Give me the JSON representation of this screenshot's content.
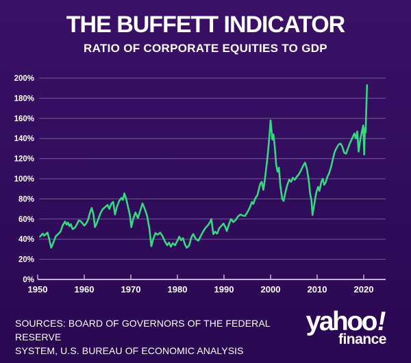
{
  "page": {
    "bg_top": "#3a1166",
    "bg_bottom": "#2a0751"
  },
  "header": {
    "title": "THE BUFFETT INDICATOR",
    "subtitle": "RATIO OF CORPORATE EQUITIES TO GDP"
  },
  "footer": {
    "lines": [
      "SOURCES: BOARD OF GOVERNORS OF THE FEDERAL RESERVE",
      "SYSTEM, U.S. BUREAU OF ECONOMIC ANALYSIS"
    ]
  },
  "brand": {
    "wordmark": "yahoo",
    "bang": "!",
    "sub": "finance"
  },
  "chart_data": {
    "type": "line",
    "title": "THE BUFFETT INDICATOR",
    "subtitle": "RATIO OF CORPORATE EQUITIES TO GDP",
    "xlabel": "",
    "ylabel": "",
    "xlim": [
      1948,
      2025
    ],
    "ylim": [
      0,
      200
    ],
    "y_tick_step": 20,
    "y_tick_labels": [
      "0%",
      "20%",
      "40%",
      "60%",
      "80%",
      "100%",
      "120%",
      "140%",
      "160%",
      "180%",
      "200%"
    ],
    "x_ticks": [
      1950,
      1960,
      1970,
      1980,
      1990,
      2000,
      2010,
      2020
    ],
    "grid": "horizontal",
    "legend": "none",
    "line_color": "#36d981",
    "axis_color": "#bdb6cd",
    "grid_color": "#8b81a8",
    "series": [
      {
        "name": "Ratio of corporate equities to GDP (%)",
        "points": [
          [
            1950.5,
            42.5
          ],
          [
            1950.8,
            44
          ],
          [
            1951.1,
            45.5
          ],
          [
            1951.4,
            43.5
          ],
          [
            1951.8,
            45
          ],
          [
            1952.1,
            46.5
          ],
          [
            1952.45,
            40.5
          ],
          [
            1952.9,
            31.5
          ],
          [
            1953.4,
            37
          ],
          [
            1953.9,
            43
          ],
          [
            1954.4,
            45
          ],
          [
            1954.9,
            47.5
          ],
          [
            1955.4,
            54
          ],
          [
            1955.9,
            57.5
          ],
          [
            1956.2,
            54.5
          ],
          [
            1956.5,
            56.5
          ],
          [
            1956.8,
            53
          ],
          [
            1957.1,
            55
          ],
          [
            1957.5,
            50
          ],
          [
            1958,
            51.5
          ],
          [
            1958.4,
            54.5
          ],
          [
            1958.8,
            58.5
          ],
          [
            1959.2,
            58
          ],
          [
            1959.6,
            56
          ],
          [
            1960,
            53.5
          ],
          [
            1960.4,
            55.5
          ],
          [
            1960.8,
            59
          ],
          [
            1961.2,
            66
          ],
          [
            1961.6,
            71
          ],
          [
            1962,
            64
          ],
          [
            1962.3,
            52
          ],
          [
            1962.7,
            56
          ],
          [
            1963.1,
            61
          ],
          [
            1963.5,
            66
          ],
          [
            1964,
            70
          ],
          [
            1964.5,
            72
          ],
          [
            1965,
            74
          ],
          [
            1965.4,
            70
          ],
          [
            1965.8,
            75
          ],
          [
            1966.2,
            77
          ],
          [
            1966.6,
            64.5
          ],
          [
            1967,
            72
          ],
          [
            1967.5,
            78
          ],
          [
            1968,
            81
          ],
          [
            1968.3,
            79
          ],
          [
            1968.6,
            85.5
          ],
          [
            1969,
            80
          ],
          [
            1969.4,
            72
          ],
          [
            1969.8,
            64
          ],
          [
            1970.1,
            52
          ],
          [
            1970.5,
            60
          ],
          [
            1971,
            66.5
          ],
          [
            1971.5,
            61
          ],
          [
            1972,
            68
          ],
          [
            1972.5,
            75.5
          ],
          [
            1973,
            70
          ],
          [
            1973.5,
            63
          ],
          [
            1974,
            50
          ],
          [
            1974.4,
            33
          ],
          [
            1974.8,
            40
          ],
          [
            1975.3,
            46
          ],
          [
            1975.8,
            44.5
          ],
          [
            1976.3,
            46.5
          ],
          [
            1976.8,
            43
          ],
          [
            1977.3,
            38
          ],
          [
            1977.8,
            34
          ],
          [
            1978.2,
            36.5
          ],
          [
            1978.6,
            32.5
          ],
          [
            1979,
            36
          ],
          [
            1979.5,
            34
          ],
          [
            1980,
            38.5
          ],
          [
            1980.4,
            42.5
          ],
          [
            1980.8,
            39
          ],
          [
            1981.2,
            41
          ],
          [
            1981.6,
            35
          ],
          [
            1982,
            31.5
          ],
          [
            1982.5,
            33.5
          ],
          [
            1983,
            42
          ],
          [
            1983.4,
            45
          ],
          [
            1984,
            40
          ],
          [
            1984.5,
            38.5
          ],
          [
            1985,
            43
          ],
          [
            1985.5,
            47.5
          ],
          [
            1986,
            51
          ],
          [
            1986.5,
            53.5
          ],
          [
            1987,
            57
          ],
          [
            1987.3,
            60
          ],
          [
            1987.7,
            45
          ],
          [
            1988.1,
            47.5
          ],
          [
            1988.5,
            45.5
          ],
          [
            1989,
            51
          ],
          [
            1989.5,
            53.5
          ],
          [
            1989.9,
            55.5
          ],
          [
            1990.3,
            52
          ],
          [
            1990.6,
            48
          ],
          [
            1991,
            54
          ],
          [
            1991.5,
            60
          ],
          [
            1992,
            57
          ],
          [
            1992.5,
            59
          ],
          [
            1993,
            62.5
          ],
          [
            1993.5,
            64.5
          ],
          [
            1994,
            63.5
          ],
          [
            1994.5,
            63
          ],
          [
            1995,
            66.5
          ],
          [
            1995.5,
            71
          ],
          [
            1996,
            77
          ],
          [
            1996.3,
            75
          ],
          [
            1996.7,
            80.5
          ],
          [
            1997.2,
            84
          ],
          [
            1997.5,
            90
          ],
          [
            1997.8,
            95
          ],
          [
            1998.1,
            97
          ],
          [
            1998.45,
            89
          ],
          [
            1998.8,
            100
          ],
          [
            1999.1,
            112
          ],
          [
            1999.4,
            124
          ],
          [
            1999.7,
            140
          ],
          [
            2000,
            158
          ],
          [
            2000.2,
            148
          ],
          [
            2000.4,
            139
          ],
          [
            2000.6,
            144
          ],
          [
            2000.9,
            132
          ],
          [
            2001.2,
            114
          ],
          [
            2001.5,
            107
          ],
          [
            2001.8,
            111
          ],
          [
            2002.1,
            93
          ],
          [
            2002.5,
            80
          ],
          [
            2002.8,
            78
          ],
          [
            2003.2,
            87
          ],
          [
            2003.6,
            94
          ],
          [
            2004,
            99
          ],
          [
            2004.4,
            97
          ],
          [
            2004.8,
            101
          ],
          [
            2005.2,
            99
          ],
          [
            2005.6,
            102
          ],
          [
            2006,
            104
          ],
          [
            2006.5,
            108
          ],
          [
            2007,
            113
          ],
          [
            2007.4,
            116
          ],
          [
            2007.8,
            110
          ],
          [
            2008.2,
            98
          ],
          [
            2008.5,
            85
          ],
          [
            2008.8,
            78
          ],
          [
            2009,
            64
          ],
          [
            2009.2,
            70
          ],
          [
            2009.4,
            75
          ],
          [
            2009.8,
            86
          ],
          [
            2010.2,
            92
          ],
          [
            2010.5,
            88
          ],
          [
            2010.9,
            97
          ],
          [
            2011.2,
            100
          ],
          [
            2011.5,
            94
          ],
          [
            2011.8,
            96
          ],
          [
            2012.2,
            102
          ],
          [
            2012.6,
            106
          ],
          [
            2013,
            112
          ],
          [
            2013.4,
            120
          ],
          [
            2013.8,
            127
          ],
          [
            2014.2,
            131
          ],
          [
            2014.6,
            134
          ],
          [
            2015,
            135
          ],
          [
            2015.4,
            132
          ],
          [
            2015.8,
            126
          ],
          [
            2016.2,
            125
          ],
          [
            2016.6,
            130
          ],
          [
            2017,
            135
          ],
          [
            2017.5,
            140
          ],
          [
            2018,
            145
          ],
          [
            2018.3,
            140
          ],
          [
            2018.6,
            147
          ],
          [
            2018.9,
            127
          ],
          [
            2019.3,
            140
          ],
          [
            2019.6,
            147
          ],
          [
            2019.9,
            153
          ],
          [
            2020.1,
            124
          ],
          [
            2020.25,
            150
          ],
          [
            2020.4,
            146
          ],
          [
            2020.55,
            168
          ],
          [
            2020.7,
            193
          ]
        ]
      }
    ]
  }
}
